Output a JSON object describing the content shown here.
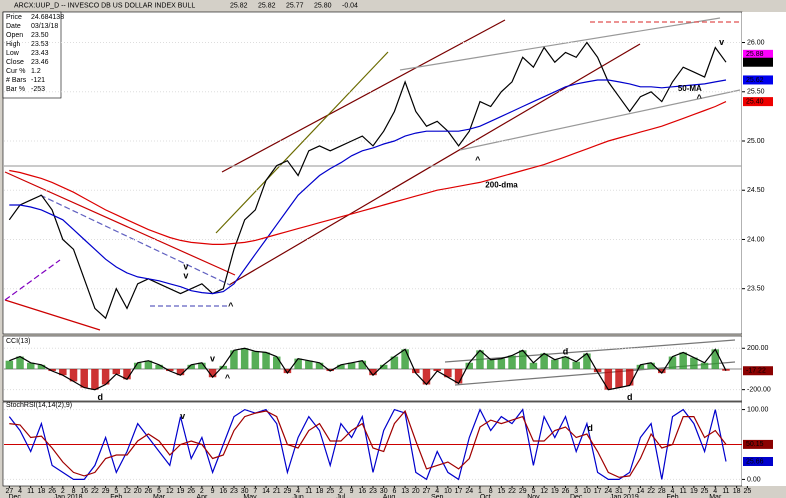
{
  "header": {
    "title": "ARCX:UUP_D -- INVESCO DB US DOLLAR INDEX BULL",
    "quote": [
      "25.82",
      "25.82",
      "25.77",
      "25.80",
      "-0.04"
    ],
    "info": [
      [
        "Price",
        "24.684138"
      ],
      [
        "Date",
        "03/13/18"
      ],
      [
        "Open",
        "23.50"
      ],
      [
        "High",
        "23.53"
      ],
      [
        "Low",
        "23.43"
      ],
      [
        "Close",
        "23.46"
      ],
      [
        "Cur %",
        "1.2"
      ],
      [
        "# Bars",
        "-121"
      ],
      [
        "Bar %",
        "-253"
      ]
    ]
  },
  "chart_data": [
    {
      "type": "line",
      "ylim": [
        23.05,
        26.3
      ],
      "yticks": [
        {
          "value": 23.5,
          "label": "23.50"
        },
        {
          "value": 24,
          "label": "24.00"
        },
        {
          "value": 24.5,
          "label": "24.50"
        },
        {
          "value": 25,
          "label": "25.00"
        },
        {
          "value": 25.5,
          "label": "25.50"
        },
        {
          "value": 26,
          "label": "26.00"
        }
      ],
      "series": [
        {
          "color": "#000000",
          "values": [
            24.2,
            24.35,
            24.4,
            24.45,
            24.3,
            24.0,
            23.9,
            23.6,
            23.3,
            23.2,
            23.5,
            23.3,
            23.55,
            23.6,
            23.55,
            23.5,
            23.45,
            23.5,
            23.55,
            23.45,
            23.5,
            23.9,
            24.2,
            24.3,
            24.6,
            24.75,
            24.8,
            24.65,
            24.9,
            24.95,
            24.9,
            24.95,
            25.0,
            25.05,
            24.95,
            25.1,
            25.3,
            25.6,
            25.3,
            25.15,
            25.2,
            25.1,
            24.95,
            25.1,
            25.4,
            25.35,
            25.5,
            25.6,
            25.85,
            25.75,
            25.95,
            25.8,
            25.9,
            25.85,
            26.0,
            25.85,
            25.6,
            25.45,
            25.3,
            25.45,
            25.5,
            25.4,
            25.6,
            25.75,
            25.7,
            25.65,
            25.95,
            25.8
          ]
        },
        {
          "name": "50-MA",
          "color": "#0000cc",
          "values": [
            24.35,
            24.35,
            24.33,
            24.3,
            24.25,
            24.2,
            24.1,
            24.0,
            23.9,
            23.8,
            23.72,
            23.66,
            23.62,
            23.6,
            23.58,
            23.55,
            23.52,
            23.48,
            23.46,
            23.45,
            23.47,
            23.55,
            23.7,
            23.85,
            24.0,
            24.15,
            24.3,
            24.45,
            24.55,
            24.65,
            24.72,
            24.78,
            24.85,
            24.9,
            24.93,
            24.97,
            25.0,
            25.05,
            25.08,
            25.1,
            25.1,
            25.1,
            25.1,
            25.12,
            25.15,
            25.2,
            25.25,
            25.3,
            25.35,
            25.4,
            25.45,
            25.5,
            25.55,
            25.58,
            25.6,
            25.62,
            25.62,
            25.6,
            25.58,
            25.55,
            25.55,
            25.54,
            25.55,
            25.56,
            25.57,
            25.58,
            25.6,
            25.62
          ]
        },
        {
          "name": "200-dma",
          "color": "#dd0000",
          "values": [
            24.7,
            24.68,
            24.65,
            24.62,
            24.58,
            24.53,
            24.48,
            24.42,
            24.36,
            24.3,
            24.25,
            24.2,
            24.15,
            24.1,
            24.06,
            24.02,
            23.99,
            23.97,
            23.96,
            23.95,
            23.95,
            23.96,
            23.97,
            23.99,
            24.02,
            24.05,
            24.08,
            24.11,
            24.14,
            24.17,
            24.2,
            24.23,
            24.26,
            24.29,
            24.32,
            24.35,
            24.38,
            24.41,
            24.44,
            24.47,
            24.5,
            24.52,
            24.54,
            24.56,
            24.58,
            24.61,
            24.64,
            24.67,
            24.7,
            24.73,
            24.76,
            24.8,
            24.84,
            24.88,
            24.92,
            24.96,
            25.0,
            25.03,
            25.06,
            25.09,
            25.12,
            25.15,
            25.19,
            25.23,
            25.27,
            25.31,
            25.35,
            25.4
          ]
        }
      ],
      "markers": [
        {
          "value": 25.88,
          "color": "#ff00ff"
        },
        {
          "value": 25.8,
          "label": "25.80",
          "color": "#000000"
        },
        {
          "value": 25.62,
          "color": "#0000ee"
        },
        {
          "value": 25.4,
          "label": "25.40",
          "color": "#ee0000"
        }
      ],
      "annotations": [
        {
          "text": "v",
          "color": "#009000"
        },
        {
          "text": "v",
          "color": "#ff00ff"
        },
        {
          "text": "^",
          "color": "#ff00ff"
        },
        {
          "text": "^",
          "color": "#ff00ff"
        },
        {
          "text": "^",
          "color": "#ff00ff"
        },
        {
          "text": "v",
          "color": "#ff00ff"
        }
      ]
    },
    {
      "type": "bar",
      "title": "CCI(13)",
      "ylim": [
        -300,
        280
      ],
      "yticks": [
        {
          "value": 200,
          "label": "200.00"
        },
        {
          "value": -200,
          "label": "-200.00"
        }
      ],
      "colors": [
        "#2e9a2e",
        "#c00000"
      ],
      "values": [
        80,
        120,
        60,
        40,
        -20,
        -60,
        -120,
        -180,
        -200,
        -150,
        -50,
        -100,
        60,
        80,
        40,
        -20,
        -60,
        40,
        60,
        -80,
        30,
        180,
        200,
        170,
        160,
        120,
        -40,
        100,
        80,
        60,
        -20,
        40,
        60,
        80,
        -60,
        40,
        120,
        190,
        -40,
        -150,
        -20,
        -80,
        -140,
        60,
        180,
        90,
        100,
        130,
        180,
        60,
        150,
        90,
        120,
        70,
        150,
        -30,
        -200,
        -180,
        -160,
        40,
        60,
        -40,
        120,
        160,
        110,
        60,
        190,
        -17.22
      ],
      "markers": [
        {
          "value": -17.22,
          "color": "#8b0000"
        }
      ],
      "annotations": [
        {
          "text": "d",
          "color": "#008000"
        },
        {
          "text": "v",
          "color": "#dd0000"
        },
        {
          "text": "^",
          "color": "#0000dd"
        },
        {
          "text": "d",
          "color": "#dd0000"
        },
        {
          "text": "d",
          "color": "#008000"
        }
      ]
    },
    {
      "type": "line",
      "title": "StochRSI(14,14(2),9)",
      "ylim": [
        -8,
        108
      ],
      "yticks": [
        {
          "value": 100,
          "label": "100.00"
        },
        {
          "value": 0,
          "label": "0.00"
        }
      ],
      "midline": 50,
      "series": [
        {
          "color": "#0000cc",
          "values": [
            90,
            70,
            40,
            80,
            20,
            10,
            0,
            0,
            20,
            60,
            10,
            40,
            80,
            60,
            40,
            20,
            90,
            30,
            60,
            10,
            50,
            90,
            100,
            95,
            100,
            80,
            10,
            60,
            90,
            70,
            20,
            80,
            60,
            90,
            10,
            70,
            100,
            95,
            10,
            0,
            40,
            10,
            0,
            60,
            100,
            70,
            90,
            80,
            100,
            20,
            90,
            60,
            90,
            40,
            80,
            10,
            0,
            0,
            10,
            60,
            80,
            0,
            90,
            100,
            80,
            40,
            100,
            25.66
          ]
        },
        {
          "color": "#a00000",
          "values": [
            80,
            78,
            60,
            62,
            45,
            25,
            10,
            5,
            10,
            30,
            35,
            35,
            55,
            65,
            55,
            35,
            50,
            55,
            50,
            30,
            35,
            70,
            90,
            95,
            98,
            90,
            50,
            45,
            70,
            80,
            55,
            55,
            70,
            80,
            45,
            40,
            80,
            98,
            55,
            15,
            20,
            25,
            15,
            30,
            75,
            85,
            80,
            85,
            90,
            55,
            55,
            70,
            75,
            60,
            65,
            40,
            10,
            3,
            5,
            30,
            65,
            45,
            50,
            90,
            90,
            60,
            70,
            50.15
          ]
        }
      ],
      "markers": [
        {
          "value": 50.15,
          "color": "#8b0000"
        },
        {
          "value": 25.66,
          "color": "#0000cc"
        }
      ],
      "annotations": [
        {
          "text": "v",
          "color": "#dd0000"
        },
        {
          "text": "d",
          "color": "#dd0000"
        }
      ],
      "xlim": [
        -0.5,
        68.5
      ],
      "xticks": [
        {
          "value": 0,
          "label": "27"
        },
        {
          "value": 1,
          "label": "4"
        },
        {
          "value": 2,
          "label": "11"
        },
        {
          "value": 3,
          "label": "18"
        },
        {
          "value": 4,
          "label": "26"
        },
        {
          "value": 5,
          "label": "2"
        },
        {
          "value": 6,
          "label": "8"
        },
        {
          "value": 7,
          "label": "16"
        },
        {
          "value": 8,
          "label": "22"
        },
        {
          "value": 9,
          "label": "29"
        },
        {
          "value": 10,
          "label": "5"
        },
        {
          "value": 11,
          "label": "12"
        },
        {
          "value": 12,
          "label": "20"
        },
        {
          "value": 13,
          "label": "26"
        },
        {
          "value": 14,
          "label": "5"
        },
        {
          "value": 15,
          "label": "12"
        },
        {
          "value": 16,
          "label": "19"
        },
        {
          "value": 17,
          "label": "26"
        },
        {
          "value": 18,
          "label": "2"
        },
        {
          "value": 19,
          "label": "9"
        },
        {
          "value": 20,
          "label": "16"
        },
        {
          "value": 21,
          "label": "23"
        },
        {
          "value": 22,
          "label": "30"
        },
        {
          "value": 23,
          "label": "7"
        },
        {
          "value": 24,
          "label": "14"
        },
        {
          "value": 25,
          "label": "21"
        },
        {
          "value": 26,
          "label": "29"
        },
        {
          "value": 27,
          "label": "4"
        },
        {
          "value": 28,
          "label": "11"
        },
        {
          "value": 29,
          "label": "18"
        },
        {
          "value": 30,
          "label": "25"
        },
        {
          "value": 31,
          "label": "2"
        },
        {
          "value": 32,
          "label": "9"
        },
        {
          "value": 33,
          "label": "16"
        },
        {
          "value": 34,
          "label": "23"
        },
        {
          "value": 35,
          "label": "30"
        },
        {
          "value": 36,
          "label": "6"
        },
        {
          "value": 37,
          "label": "13"
        },
        {
          "value": 38,
          "label": "20"
        },
        {
          "value": 39,
          "label": "27"
        },
        {
          "value": 40,
          "label": "4"
        },
        {
          "value": 41,
          "label": "10"
        },
        {
          "value": 42,
          "label": "17"
        },
        {
          "value": 43,
          "label": "24"
        },
        {
          "value": 44,
          "label": "1"
        },
        {
          "value": 45,
          "label": "8"
        },
        {
          "value": 46,
          "label": "15"
        },
        {
          "value": 47,
          "label": "22"
        },
        {
          "value": 48,
          "label": "29"
        },
        {
          "value": 49,
          "label": "5"
        },
        {
          "value": 50,
          "label": "12"
        },
        {
          "value": 51,
          "label": "19"
        },
        {
          "value": 52,
          "label": "26"
        },
        {
          "value": 53,
          "label": "3"
        },
        {
          "value": 54,
          "label": "10"
        },
        {
          "value": 55,
          "label": "17"
        },
        {
          "value": 56,
          "label": "24"
        },
        {
          "value": 57,
          "label": "31"
        },
        {
          "value": 58,
          "label": "7"
        },
        {
          "value": 59,
          "label": "14"
        },
        {
          "value": 60,
          "label": "22"
        },
        {
          "value": 61,
          "label": "28"
        },
        {
          "value": 62,
          "label": "4"
        },
        {
          "value": 63,
          "label": "11"
        },
        {
          "value": 64,
          "label": "19"
        },
        {
          "value": 65,
          "label": "25"
        },
        {
          "value": 66,
          "label": "4"
        },
        {
          "value": 67,
          "label": "11"
        },
        {
          "value": 68,
          "label": "18"
        },
        {
          "value": 69,
          "label": "25"
        }
      ],
      "month_ticks": [
        {
          "value": 0.5,
          "label": "Dec"
        },
        {
          "value": 5.5,
          "label": "Jan 2018"
        },
        {
          "value": 10,
          "label": "Feb"
        },
        {
          "value": 14,
          "label": "Mar"
        },
        {
          "value": 18,
          "label": "Apr"
        },
        {
          "value": 22.5,
          "label": "May"
        },
        {
          "value": 27,
          "label": "Jun"
        },
        {
          "value": 31,
          "label": "Jul"
        },
        {
          "value": 35.5,
          "label": "Aug"
        },
        {
          "value": 40,
          "label": "Sep"
        },
        {
          "value": 44.5,
          "label": "Oct"
        },
        {
          "value": 49,
          "label": "Nov"
        },
        {
          "value": 53,
          "label": "Dec"
        },
        {
          "value": 57.5,
          "label": "Jan 2019"
        },
        {
          "value": 62,
          "label": "Feb"
        },
        {
          "value": 66,
          "label": "Mar"
        }
      ]
    }
  ]
}
